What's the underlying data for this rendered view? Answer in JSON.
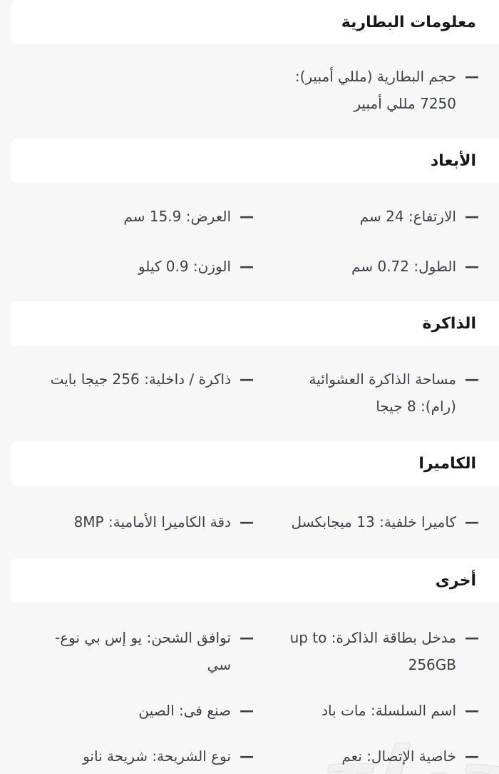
{
  "page": {
    "background_color": "#f7f7f8",
    "card_color": "#ffffff",
    "header_text_color": "#17181c",
    "item_text_color": "#3c3f46",
    "bullet": "—",
    "watermark": "حراج"
  },
  "sections": [
    {
      "title": "معلومات البطارية",
      "items": [
        "حجم البطارية (مللي أمبير): 7250 مللي أمبير"
      ]
    },
    {
      "title": "الأبعاد",
      "items": [
        "الارتفاع: 24 سم",
        "العرض: 15.9 سم",
        "الطول: 0.72 سم",
        "الوزن: 0.9 كيلو"
      ]
    },
    {
      "title": "الذاكرة",
      "items": [
        "مساحة الذاكرة العشوائية (رام): 8 جيجا",
        "ذاكرة / داخلية: 256 جيجا بايت"
      ]
    },
    {
      "title": "الكاميرا",
      "items": [
        "كاميرا خلفية: 13 ميجابكسل",
        "دقة الكاميرا الأمامية: 8MP"
      ]
    },
    {
      "title": "أخرى",
      "items": [
        "مدخل بطاقة الذاكرة: up to 256GB",
        "توافق الشحن: يو إس بي نوع-سي",
        "اسم السلسلة: مات باد",
        "صنع فى: الصين",
        "خاصية الإتصال: نعم",
        "نوع الشريحة: شريحة نانو"
      ]
    }
  ]
}
